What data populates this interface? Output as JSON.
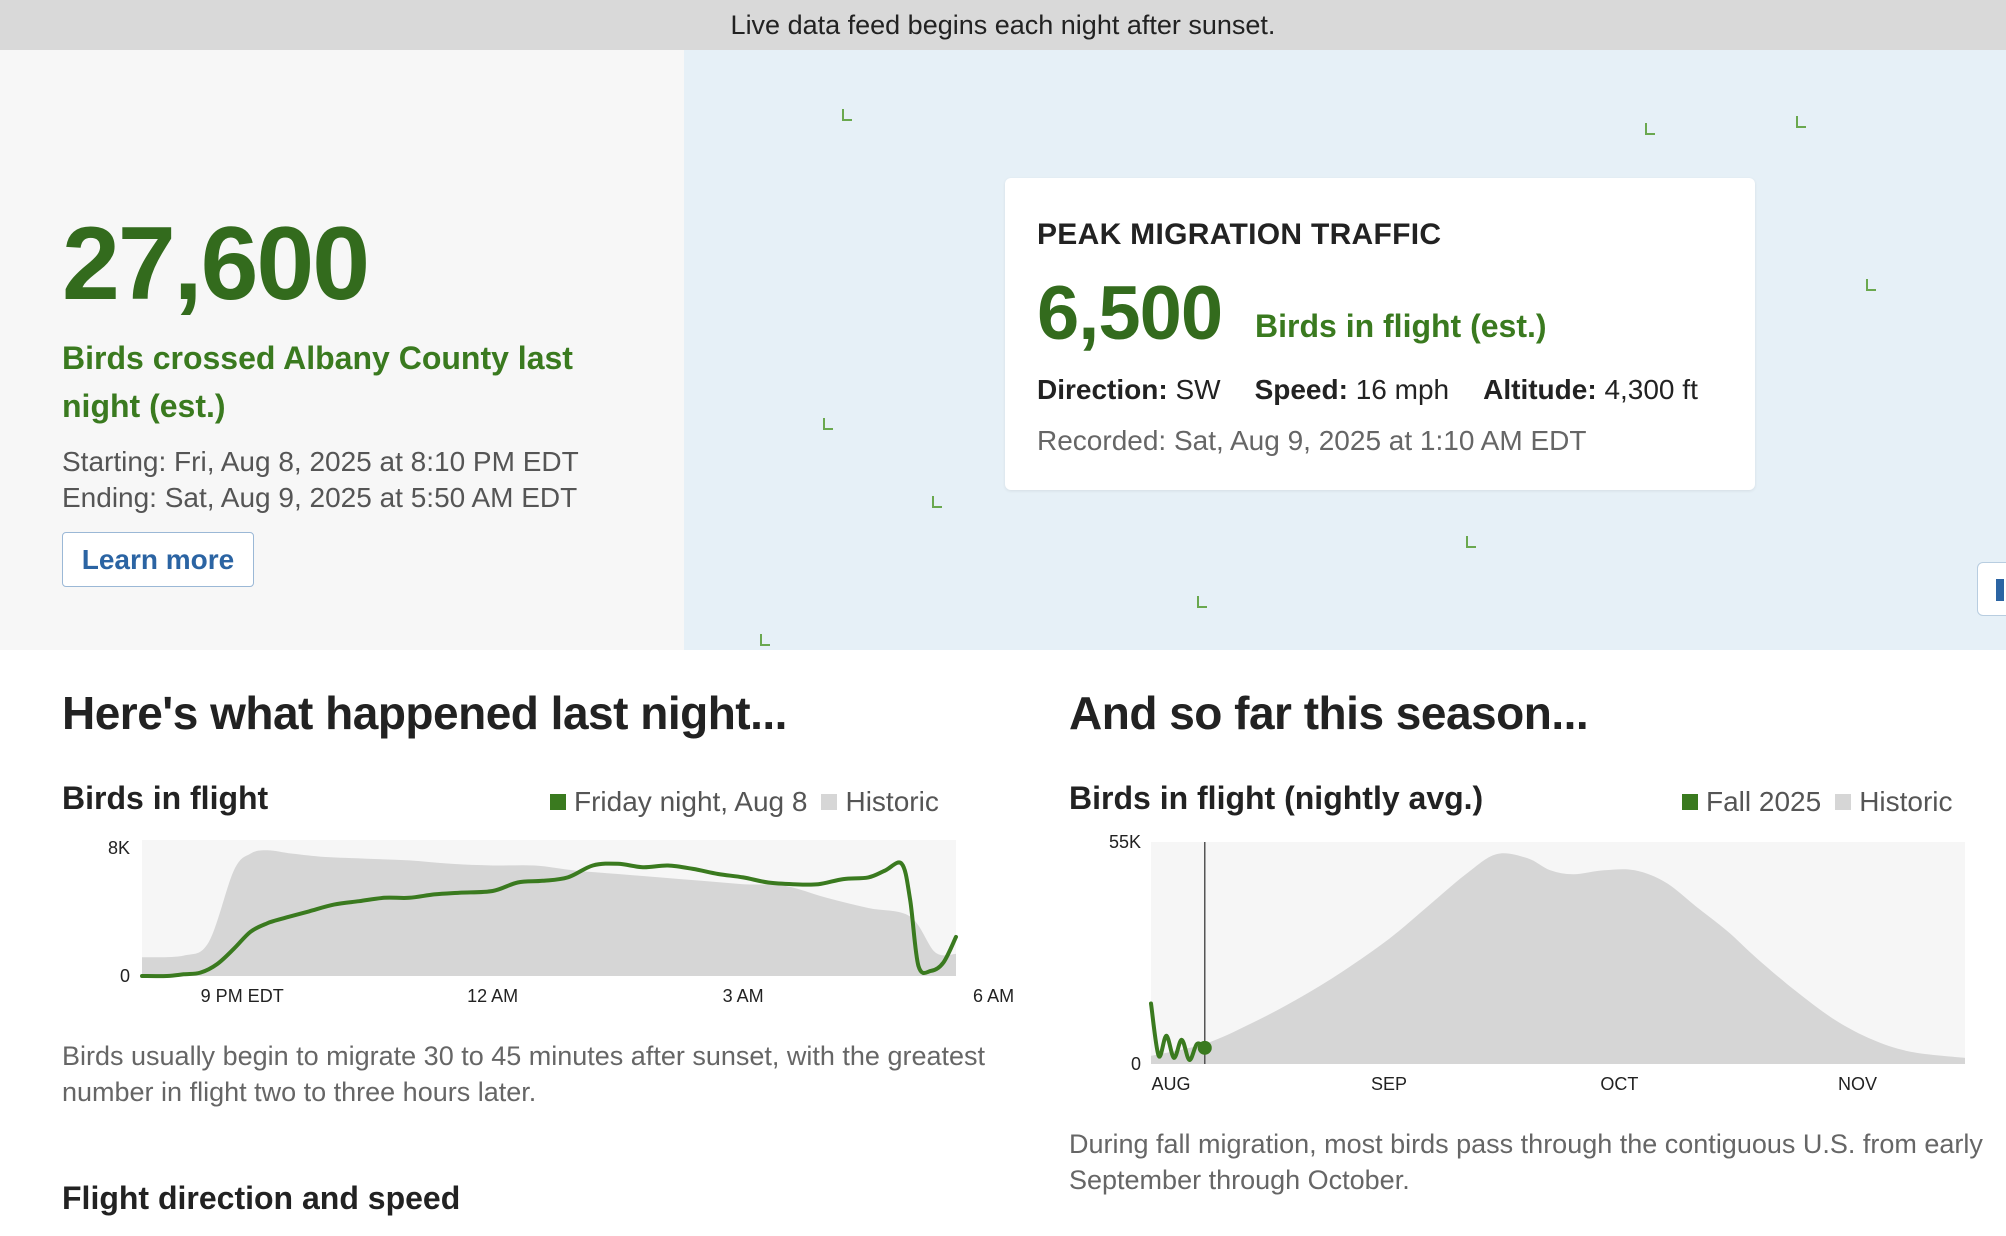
{
  "banner": {
    "text": "Live data feed begins each night after sunset."
  },
  "summary": {
    "count": "27,600",
    "caption": "Birds crossed Albany County last night (est.)",
    "starting": "Starting: Fri, Aug 8, 2025 at 8:10 PM EDT",
    "ending": "Ending: Sat, Aug 9, 2025 at 5:50 AM EDT",
    "learn_more_label": "Learn more"
  },
  "peak": {
    "title": "PEAK MIGRATION TRAFFIC",
    "count": "6,500",
    "count_label": "Birds in flight (est.)",
    "direction_label": "Direction:",
    "direction_value": "SW",
    "speed_label": "Speed:",
    "speed_value": "16 mph",
    "altitude_label": "Altitude:",
    "altitude_value": "4,300 ft",
    "recorded": "Recorded: Sat, Aug 9, 2025 at 1:10 AM EDT"
  },
  "last_night": {
    "heading": "Here's what happened last night...",
    "chart_title": "Birds in flight",
    "legend_current": "Friday night, Aug 8",
    "legend_historic": "Historic",
    "caption": "Birds usually begin to migrate 30 to 45 minutes after sunset, with the greatest number in flight two to three hours later.",
    "next_heading": "Flight direction and speed"
  },
  "season": {
    "heading": "And so far this season...",
    "chart_title": "Birds in flight (nightly avg.)",
    "legend_current": "Fall 2025",
    "legend_historic": "Historic",
    "caption": "During fall migration, most birds pass through the contiguous U.S. from early September through October."
  },
  "colors": {
    "current": "#3a7a1f",
    "historic": "#d6d6d6",
    "accent_blue": "#2b64a3"
  },
  "chart_data": [
    {
      "type": "area",
      "title": "Birds in flight",
      "y_ticks": [
        "8K",
        "0"
      ],
      "x_ticks": [
        "9 PM EDT",
        "12 AM",
        "3 AM",
        "6 AM"
      ],
      "x_tick_hours": [
        21,
        24,
        27,
        30
      ],
      "ylim": [
        0,
        8000
      ],
      "series": [
        {
          "name": "Friday night, Aug 8",
          "x_hours": [
            19.8,
            20.1,
            20.3,
            20.5,
            20.7,
            20.9,
            21.1,
            21.3,
            21.5,
            21.8,
            22.1,
            22.4,
            22.7,
            23.0,
            23.3,
            23.6,
            24.0,
            24.3,
            24.6,
            24.9,
            25.2,
            25.5,
            25.8,
            26.1,
            26.4,
            26.7,
            27.0,
            27.3,
            27.6,
            27.9,
            28.2,
            28.5,
            28.7,
            28.9,
            29.0,
            29.1,
            29.25,
            29.4,
            29.55
          ],
          "values": [
            0,
            0,
            100,
            200,
            700,
            1600,
            2600,
            3100,
            3400,
            3800,
            4200,
            4400,
            4600,
            4600,
            4800,
            4900,
            5000,
            5500,
            5600,
            5800,
            6500,
            6600,
            6400,
            6500,
            6300,
            6000,
            5800,
            5500,
            5400,
            5400,
            5700,
            5800,
            6200,
            6600,
            4500,
            600,
            300,
            800,
            2300
          ]
        },
        {
          "name": "Historic",
          "x_hours": [
            19.8,
            20.3,
            20.6,
            20.9,
            21.1,
            21.3,
            21.6,
            22.0,
            22.5,
            23.0,
            23.5,
            24.0,
            24.5,
            25.0,
            25.5,
            26.0,
            26.5,
            27.0,
            27.5,
            28.0,
            28.5,
            29.0,
            29.3,
            29.55
          ],
          "values": [
            1100,
            1200,
            2000,
            6200,
            7200,
            7400,
            7200,
            7000,
            6900,
            6800,
            6600,
            6500,
            6500,
            6200,
            6000,
            5800,
            5600,
            5400,
            5300,
            4600,
            4000,
            3500,
            1400,
            1300
          ]
        }
      ]
    },
    {
      "type": "area",
      "title": "Birds in flight (nightly avg.)",
      "y_ticks": [
        "55K",
        "0"
      ],
      "x_ticks": [
        "AUG",
        "SEP",
        "OCT",
        "NOV"
      ],
      "x_tick_days": [
        1,
        32,
        62,
        93
      ],
      "ylim": [
        0,
        55000
      ],
      "marker_day": 8,
      "series": [
        {
          "name": "Fall 2025",
          "x_days": [
            1,
            2,
            3,
            4,
            5,
            6,
            7,
            8
          ],
          "values": [
            15000,
            2000,
            7000,
            1500,
            6000,
            1000,
            5000,
            4000
          ]
        },
        {
          "name": "Historic",
          "x_days": [
            1,
            8,
            14,
            20,
            26,
            32,
            37,
            42,
            46,
            50,
            53,
            56,
            60,
            64,
            68,
            72,
            76,
            80,
            85,
            90,
            95,
            100,
            107
          ],
          "values": [
            2000,
            5000,
            10000,
            16000,
            23000,
            31000,
            39000,
            47000,
            52000,
            51000,
            48000,
            47000,
            48000,
            48000,
            45000,
            39000,
            33000,
            26000,
            18000,
            11000,
            6000,
            3000,
            1500
          ]
        }
      ]
    }
  ]
}
